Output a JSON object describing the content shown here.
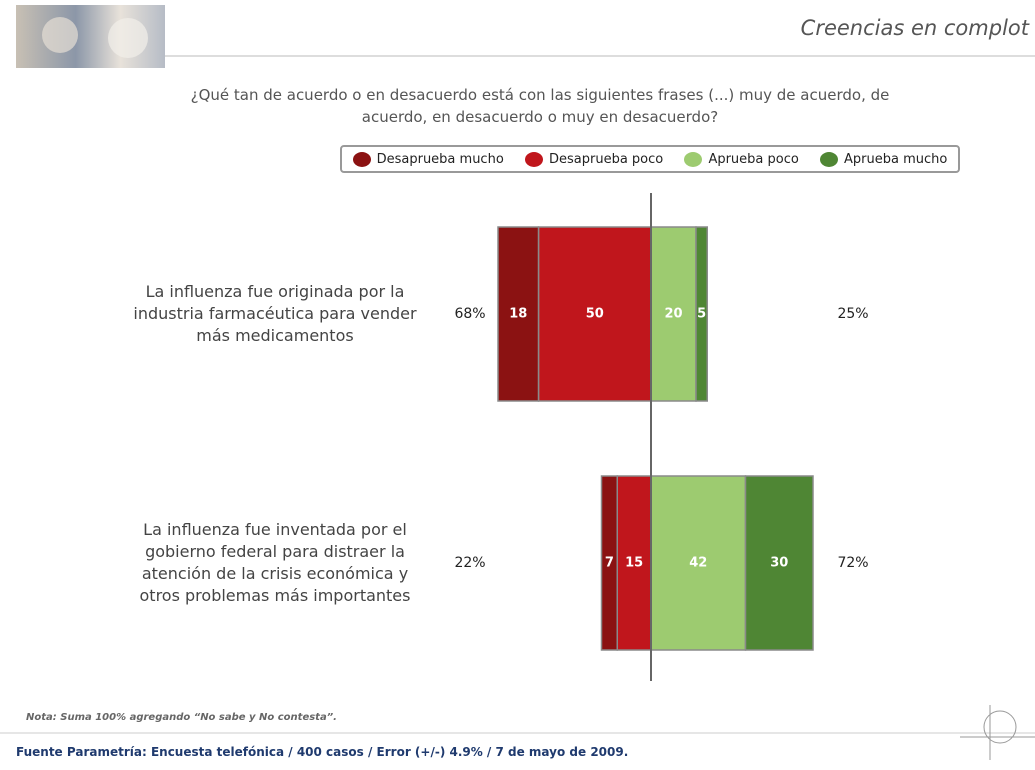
{
  "chart_data": {
    "type": "diverging_bar",
    "title": "Creencias en complot",
    "subtitle": "¿Qué tan de acuerdo o en desacuerdo está con las siguientes frases (...) muy de acuerdo, de acuerdo, en desacuerdo o muy en desacuerdo?",
    "categories": [
      "La influenza fue originada por la industria farmacéutica para vender más medicamentos",
      "La influenza fue inventada por el gobierno federal para distraer la atención de la crisis económica y otros problemas más importantes"
    ],
    "series": [
      {
        "name": "Desaprueba mucho",
        "color": "#8b1212",
        "side": "left",
        "values": [
          18,
          7
        ]
      },
      {
        "name": "Desaprueba poco",
        "color": "#c0161c",
        "side": "left",
        "values": [
          50,
          15
        ]
      },
      {
        "name": "Aprueba poco",
        "color": "#9dcb70",
        "side": "right",
        "values": [
          20,
          42
        ]
      },
      {
        "name": "Aprueba mucho",
        "color": "#4f8634",
        "side": "right",
        "values": [
          5,
          30
        ]
      }
    ],
    "left_totals": {
      "values": [
        68,
        22
      ],
      "value_labels": [
        "68%",
        "22%"
      ]
    },
    "right_totals": {
      "values": [
        25,
        72
      ],
      "value_labels": [
        "25%",
        "72%"
      ]
    },
    "xlim": [
      -100,
      100
    ],
    "note": "Nota: Suma 100%  agregando  “No sabe y No contesta”.",
    "source": "Fuente Parametría: Encuesta telefónica / 400 casos / Error (+/-) 4.9% / 7 de mayo de 2009."
  }
}
